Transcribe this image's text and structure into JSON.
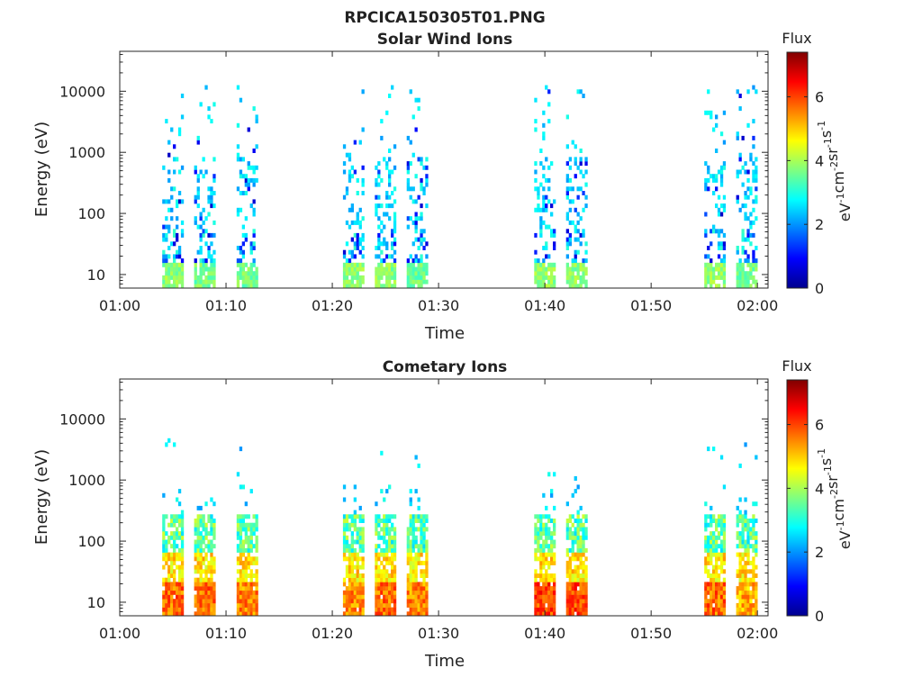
{
  "figure": {
    "title": "RPCICA150305T01.PNG"
  },
  "colorbar": {
    "label": "Flux",
    "unit_parts": [
      "eV",
      "-1",
      "cm",
      "-2",
      "sr",
      "-1",
      "s",
      "-1"
    ],
    "ticks": [
      "0",
      "2",
      "4",
      "6"
    ],
    "range": [
      0,
      7.4
    ],
    "colormap": "jet"
  },
  "chart_data": [
    {
      "type": "heatmap",
      "title": "Solar Wind Ions",
      "xlabel": "Time",
      "ylabel": "Energy (eV)",
      "xscale": "time",
      "xlim": [
        "01:00",
        "02:01"
      ],
      "x_ticks": [
        "01:00",
        "01:10",
        "01:20",
        "01:30",
        "01:40",
        "01:50",
        "02:00"
      ],
      "yscale": "log",
      "ylim": [
        6,
        45000
      ],
      "y_ticks": [
        "10",
        "100",
        "1000",
        "10000"
      ],
      "clim": [
        0,
        7.4
      ],
      "bursts": [
        {
          "start": "01:04",
          "end": "01:06",
          "peak_flux": 4.2
        },
        {
          "start": "01:07",
          "end": "01:09",
          "peak_flux": 4.0
        },
        {
          "start": "01:11",
          "end": "01:13",
          "peak_flux": 4.0
        },
        {
          "start": "01:21",
          "end": "01:23",
          "peak_flux": 4.2
        },
        {
          "start": "01:24",
          "end": "01:26",
          "peak_flux": 4.2
        },
        {
          "start": "01:27",
          "end": "01:29",
          "peak_flux": 4.0
        },
        {
          "start": "01:39",
          "end": "01:41",
          "peak_flux": 4.2
        },
        {
          "start": "01:42",
          "end": "01:44",
          "peak_flux": 4.2
        },
        {
          "start": "01:55",
          "end": "01:57",
          "peak_flux": 4.2
        },
        {
          "start": "01:58",
          "end": "02:00",
          "peak_flux": 4.0
        }
      ]
    },
    {
      "type": "heatmap",
      "title": "Cometary Ions",
      "xlabel": "Time",
      "ylabel": "Energy (eV)",
      "xscale": "time",
      "xlim": [
        "01:00",
        "02:01"
      ],
      "x_ticks": [
        "01:00",
        "01:10",
        "01:20",
        "01:30",
        "01:40",
        "01:50",
        "02:00"
      ],
      "yscale": "log",
      "ylim": [
        6,
        45000
      ],
      "y_ticks": [
        "10",
        "100",
        "1000",
        "10000"
      ],
      "clim": [
        0,
        7.4
      ],
      "bursts": [
        {
          "start": "01:04",
          "end": "01:06",
          "peak_flux": 6.3
        },
        {
          "start": "01:07",
          "end": "01:09",
          "peak_flux": 6.3
        },
        {
          "start": "01:11",
          "end": "01:13",
          "peak_flux": 6.1
        },
        {
          "start": "01:21",
          "end": "01:23",
          "peak_flux": 6.1
        },
        {
          "start": "01:24",
          "end": "01:26",
          "peak_flux": 6.3
        },
        {
          "start": "01:27",
          "end": "01:29",
          "peak_flux": 6.1
        },
        {
          "start": "01:39",
          "end": "01:41",
          "peak_flux": 6.6
        },
        {
          "start": "01:42",
          "end": "01:44",
          "peak_flux": 6.6
        },
        {
          "start": "01:55",
          "end": "01:57",
          "peak_flux": 6.3
        },
        {
          "start": "01:58",
          "end": "02:00",
          "peak_flux": 5.8
        }
      ]
    }
  ]
}
